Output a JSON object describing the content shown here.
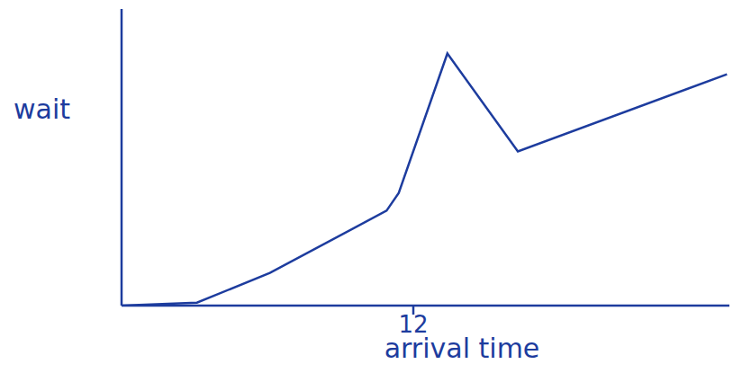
{
  "chart_data": {
    "type": "line",
    "x_label": "arrival time",
    "y_label": "wait",
    "x": [
      0,
      3.1,
      6.1,
      10.9,
      11.4,
      13.4,
      16.3,
      24.9
    ],
    "values": [
      0,
      0.1,
      1.1,
      3.2,
      3.8,
      8.5,
      5.2,
      7.8
    ],
    "color": "#1d3c9e",
    "xlim": [
      0,
      25
    ],
    "ylim": [
      0,
      10
    ],
    "xticks": [
      12
    ],
    "tick_labels": "x",
    "grid": false
  }
}
